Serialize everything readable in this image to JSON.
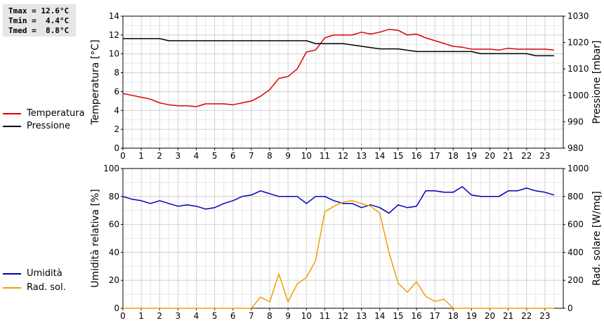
{
  "stats": {
    "tmax": "Tmax = 12.6°C",
    "tmin": "Tmin =  4.4°C",
    "tmed": "Tmed =  8.8°C"
  },
  "chart_data": [
    {
      "type": "line",
      "ylabel": "Temperatura [°C]",
      "y2label": "Pressione [mbar]",
      "xlim": [
        0,
        24
      ],
      "ylim": [
        0,
        14
      ],
      "y2lim": [
        980,
        1030
      ],
      "xticks": [
        "0",
        "1",
        "2",
        "3",
        "4",
        "5",
        "6",
        "7",
        "8",
        "9",
        "10",
        "11",
        "12",
        "13",
        "14",
        "15",
        "16",
        "17",
        "18",
        "19",
        "20",
        "21",
        "22",
        "23"
      ],
      "yticks": [
        "0",
        "2",
        "4",
        "6",
        "8",
        "10",
        "12",
        "14"
      ],
      "y2ticks": [
        "980",
        "990",
        "1000",
        "1010",
        "1020",
        "1030"
      ],
      "grid": true,
      "legend_position": "left",
      "series": [
        {
          "name": "Temperatura",
          "axis": "left",
          "color": "#dd0000",
          "x": [
            0,
            0.5,
            1,
            1.5,
            2,
            2.5,
            3,
            3.5,
            4,
            4.5,
            5,
            5.5,
            6,
            6.5,
            7,
            7.5,
            8,
            8.5,
            9,
            9.5,
            10,
            10.5,
            11,
            11.5,
            12,
            12.5,
            13,
            13.5,
            14,
            14.5,
            15,
            15.5,
            16,
            16.5,
            17,
            17.5,
            18,
            18.5,
            19,
            19.5,
            20,
            20.5,
            21,
            21.5,
            22,
            22.5,
            23,
            23.5
          ],
          "values": [
            5.8,
            5.6,
            5.4,
            5.2,
            4.8,
            4.6,
            4.5,
            4.5,
            4.4,
            4.7,
            4.7,
            4.7,
            4.6,
            4.8,
            5.0,
            5.5,
            6.2,
            7.4,
            7.6,
            8.4,
            10.2,
            10.4,
            11.7,
            12.0,
            12.0,
            12.0,
            12.3,
            12.1,
            12.3,
            12.6,
            12.5,
            12.0,
            12.1,
            11.7,
            11.4,
            11.1,
            10.8,
            10.7,
            10.5,
            10.5,
            10.5,
            10.4,
            10.6,
            10.5,
            10.5,
            10.5,
            10.5,
            10.4
          ]
        },
        {
          "name": "Pressione",
          "axis": "right",
          "color": "#000000",
          "x": [
            0,
            2,
            2.5,
            10,
            10.5,
            12,
            13,
            14,
            15,
            16,
            16.5,
            18,
            19,
            19.5,
            20,
            21,
            22,
            22.5,
            23,
            23.5
          ],
          "values": [
            1021.5,
            1021.5,
            1020.7,
            1020.7,
            1019.6,
            1019.6,
            1018.6,
            1017.6,
            1017.6,
            1016.6,
            1016.6,
            1016.6,
            1016.6,
            1015.8,
            1015.8,
            1015.8,
            1015.8,
            1015.0,
            1015.0,
            1015.0
          ]
        }
      ]
    },
    {
      "type": "line",
      "ylabel": "Umidità relativa [%]",
      "y2label": "Rad. solare [W/mq]",
      "xlim": [
        0,
        24
      ],
      "ylim": [
        0,
        100
      ],
      "y2lim": [
        0,
        1000
      ],
      "xticks": [
        "0",
        "1",
        "2",
        "3",
        "4",
        "5",
        "6",
        "7",
        "8",
        "9",
        "10",
        "11",
        "12",
        "13",
        "14",
        "15",
        "16",
        "17",
        "18",
        "19",
        "20",
        "21",
        "22",
        "23"
      ],
      "yticks": [
        "0",
        "20",
        "40",
        "60",
        "80",
        "100"
      ],
      "y2ticks": [
        "0",
        "200",
        "400",
        "600",
        "800",
        "1000"
      ],
      "grid": true,
      "legend_position": "left",
      "series": [
        {
          "name": "Umidità",
          "axis": "left",
          "color": "#0000bb",
          "x": [
            0,
            0.5,
            1,
            1.5,
            2,
            2.5,
            3,
            3.5,
            4,
            4.5,
            5,
            5.5,
            6,
            6.5,
            7,
            7.5,
            8,
            8.5,
            9,
            9.5,
            10,
            10.5,
            11,
            11.5,
            12,
            12.5,
            13,
            13.5,
            14,
            14.5,
            15,
            15.5,
            16,
            16.5,
            17,
            17.5,
            18,
            18.5,
            19,
            19.5,
            20,
            20.5,
            21,
            21.5,
            22,
            22.5,
            23,
            23.5
          ],
          "values": [
            80,
            78,
            77,
            75,
            77,
            75,
            73,
            74,
            73,
            71,
            72,
            75,
            77,
            80,
            81,
            84,
            82,
            80,
            80,
            80,
            75,
            80,
            80,
            77,
            75,
            75,
            72,
            74,
            72,
            68,
            74,
            72,
            73,
            84,
            84,
            83,
            83,
            87,
            81,
            80,
            80,
            80,
            84,
            84,
            86,
            84,
            83,
            81
          ]
        },
        {
          "name": "Rad. sol.",
          "axis": "right",
          "color": "#f0a000",
          "x": [
            0,
            0.5,
            1,
            1.5,
            2,
            2.5,
            3,
            3.5,
            4,
            4.5,
            5,
            5.5,
            6,
            6.5,
            7,
            7.5,
            8,
            8.5,
            9,
            9.5,
            10,
            10.5,
            11,
            11.5,
            12,
            12.5,
            13,
            13.5,
            14,
            14.5,
            15,
            15.5,
            16,
            16.5,
            17,
            17.5,
            18,
            18.5,
            19,
            19.5,
            20,
            20.5,
            21,
            21.5,
            22,
            22.5,
            23,
            23.5
          ],
          "values": [
            0,
            0,
            0,
            0,
            0,
            0,
            0,
            0,
            0,
            0,
            0,
            0,
            0,
            0,
            0,
            80,
            45,
            245,
            45,
            175,
            220,
            340,
            690,
            730,
            760,
            770,
            750,
            730,
            680,
            400,
            180,
            115,
            190,
            85,
            50,
            65,
            0,
            0,
            0,
            0,
            0,
            0,
            0,
            0,
            0,
            0,
            0,
            0
          ]
        }
      ]
    }
  ]
}
